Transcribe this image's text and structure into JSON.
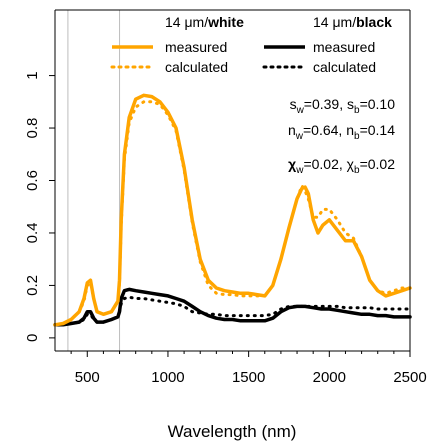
{
  "chart_data": {
    "type": "line",
    "title": "",
    "xlabel": "Wavelength (nm)",
    "ylabel": "",
    "xlim": [
      300,
      2500
    ],
    "ylim": [
      -0.05,
      1.25
    ],
    "x_ticks": [
      500,
      1000,
      1500,
      2000,
      2500
    ],
    "x_tick_labels": [
      "500",
      "1000",
      "1500",
      "2000",
      "2500"
    ],
    "y_ticks": [
      0,
      0.2,
      0.4,
      0.6,
      0.8,
      1
    ],
    "y_tick_labels": [
      "0",
      "0.2",
      "0.4",
      "0.6",
      "0.8",
      "1"
    ],
    "grid": false,
    "vertical_reference_lines_x": [
      380,
      700
    ],
    "legend": {
      "placement": "top",
      "groups": [
        {
          "heading": "14 μm/white",
          "heading_normal": "14 μm/",
          "heading_bold": "white"
        },
        {
          "heading": "14 μm/black",
          "heading_normal": "14 μm/",
          "heading_bold": "black"
        }
      ]
    },
    "colors": {
      "white": "#FFA500",
      "black": "#000000",
      "reference_line": "#BEBEBE"
    },
    "annotations": {
      "s_line": {
        "s_w": "s_w=0.39",
        "s_b": "s_b=0.10",
        "parts": [
          "s",
          "w",
          "=0.39, s",
          "b",
          "=0.10"
        ]
      },
      "n_line": {
        "n_w": "n_w=0.64",
        "n_b": "n_b=0.14",
        "parts": [
          "n",
          "w",
          "=0.64, n",
          "b",
          "=0.14"
        ]
      },
      "chi_line": {
        "chi_w": "χ_w=0.02",
        "chi_b": "χ_b=0.02",
        "parts": [
          "χ",
          "w",
          "=0.02, χ",
          "b",
          "=0.02"
        ]
      }
    },
    "series": [
      {
        "name": "measured",
        "group": "white",
        "style": "solid",
        "x": [
          300,
          350,
          400,
          450,
          480,
          500,
          520,
          540,
          560,
          600,
          650,
          690,
          700,
          710,
          730,
          760,
          800,
          850,
          900,
          950,
          1000,
          1050,
          1100,
          1150,
          1200,
          1250,
          1300,
          1350,
          1400,
          1450,
          1500,
          1550,
          1600,
          1650,
          1700,
          1750,
          1800,
          1830,
          1850,
          1870,
          1900,
          1930,
          1960,
          2000,
          2050,
          2100,
          2150,
          2200,
          2250,
          2300,
          2350,
          2400,
          2450,
          2500
        ],
        "y": [
          0.05,
          0.055,
          0.07,
          0.1,
          0.15,
          0.21,
          0.22,
          0.15,
          0.1,
          0.09,
          0.1,
          0.14,
          0.22,
          0.45,
          0.7,
          0.84,
          0.91,
          0.925,
          0.92,
          0.9,
          0.86,
          0.8,
          0.65,
          0.45,
          0.3,
          0.22,
          0.19,
          0.18,
          0.175,
          0.17,
          0.17,
          0.165,
          0.16,
          0.2,
          0.3,
          0.42,
          0.53,
          0.57,
          0.575,
          0.55,
          0.45,
          0.4,
          0.43,
          0.45,
          0.41,
          0.37,
          0.37,
          0.31,
          0.22,
          0.18,
          0.16,
          0.17,
          0.18,
          0.19
        ]
      },
      {
        "name": "calculated",
        "group": "white",
        "style": "dotted",
        "x": [
          300,
          350,
          400,
          450,
          480,
          500,
          520,
          540,
          560,
          600,
          650,
          690,
          700,
          710,
          730,
          760,
          800,
          850,
          900,
          950,
          1000,
          1050,
          1100,
          1150,
          1200,
          1250,
          1300,
          1350,
          1400,
          1450,
          1500,
          1550,
          1600,
          1650,
          1700,
          1750,
          1800,
          1830,
          1850,
          1870,
          1900,
          1930,
          1960,
          2000,
          2050,
          2100,
          2150,
          2200,
          2250,
          2300,
          2350,
          2400,
          2450,
          2500
        ],
        "y": [
          0.05,
          0.055,
          0.07,
          0.1,
          0.14,
          0.2,
          0.21,
          0.15,
          0.1,
          0.09,
          0.1,
          0.14,
          0.21,
          0.43,
          0.68,
          0.82,
          0.88,
          0.9,
          0.9,
          0.89,
          0.85,
          0.79,
          0.64,
          0.44,
          0.29,
          0.2,
          0.17,
          0.165,
          0.165,
          0.16,
          0.16,
          0.16,
          0.16,
          0.2,
          0.3,
          0.42,
          0.53,
          0.58,
          0.56,
          0.53,
          0.46,
          0.46,
          0.49,
          0.49,
          0.45,
          0.4,
          0.38,
          0.31,
          0.22,
          0.18,
          0.17,
          0.18,
          0.19,
          0.19
        ]
      },
      {
        "name": "measured",
        "group": "black",
        "style": "solid",
        "x": [
          300,
          350,
          400,
          450,
          480,
          500,
          520,
          540,
          560,
          600,
          650,
          690,
          700,
          710,
          730,
          760,
          800,
          850,
          900,
          950,
          1000,
          1050,
          1100,
          1150,
          1200,
          1250,
          1300,
          1350,
          1400,
          1450,
          1500,
          1550,
          1600,
          1650,
          1700,
          1750,
          1800,
          1850,
          1900,
          1950,
          2000,
          2050,
          2100,
          2150,
          2200,
          2250,
          2300,
          2350,
          2400,
          2450,
          2500
        ],
        "y": [
          0.05,
          0.05,
          0.055,
          0.06,
          0.075,
          0.1,
          0.1,
          0.075,
          0.06,
          0.06,
          0.07,
          0.08,
          0.1,
          0.15,
          0.18,
          0.185,
          0.18,
          0.175,
          0.17,
          0.165,
          0.16,
          0.15,
          0.14,
          0.12,
          0.1,
          0.085,
          0.075,
          0.07,
          0.07,
          0.065,
          0.065,
          0.065,
          0.065,
          0.075,
          0.1,
          0.115,
          0.12,
          0.12,
          0.115,
          0.11,
          0.11,
          0.105,
          0.1,
          0.095,
          0.09,
          0.09,
          0.085,
          0.085,
          0.08,
          0.08,
          0.08
        ]
      },
      {
        "name": "calculated",
        "group": "black",
        "style": "dotted",
        "x": [
          300,
          350,
          400,
          450,
          480,
          500,
          520,
          540,
          560,
          600,
          650,
          690,
          700,
          710,
          730,
          760,
          800,
          850,
          900,
          950,
          1000,
          1050,
          1100,
          1150,
          1200,
          1250,
          1300,
          1350,
          1400,
          1450,
          1500,
          1550,
          1600,
          1650,
          1700,
          1750,
          1800,
          1850,
          1900,
          1950,
          2000,
          2050,
          2100,
          2150,
          2200,
          2250,
          2300,
          2350,
          2400,
          2450,
          2500
        ],
        "y": [
          0.05,
          0.05,
          0.055,
          0.06,
          0.07,
          0.09,
          0.09,
          0.07,
          0.06,
          0.06,
          0.07,
          0.08,
          0.1,
          0.13,
          0.15,
          0.155,
          0.15,
          0.15,
          0.145,
          0.14,
          0.135,
          0.13,
          0.12,
          0.1,
          0.095,
          0.09,
          0.09,
          0.085,
          0.085,
          0.085,
          0.085,
          0.085,
          0.085,
          0.09,
          0.11,
          0.12,
          0.12,
          0.12,
          0.12,
          0.12,
          0.12,
          0.12,
          0.115,
          0.115,
          0.115,
          0.115,
          0.11,
          0.11,
          0.11,
          0.11,
          0.11
        ]
      }
    ]
  },
  "legend_labels": {
    "white_measured": "measured",
    "white_calculated": "calculated",
    "black_measured": "measured",
    "black_calculated": "calculated"
  }
}
